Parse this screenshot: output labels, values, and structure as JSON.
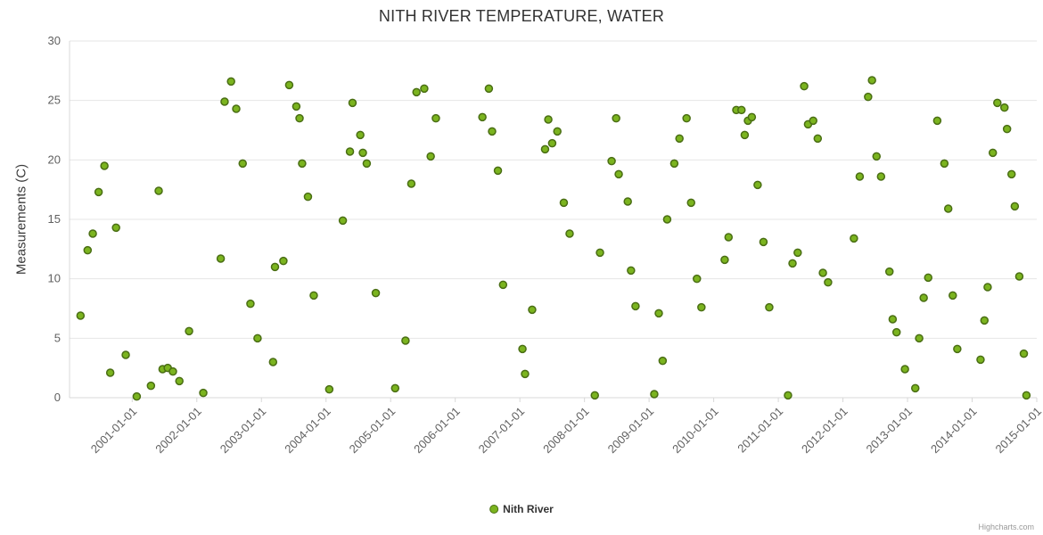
{
  "title": "NITH RIVER TEMPERATURE, WATER",
  "y_axis_title": "Measurements (C)",
  "legend": {
    "label": "Nith River"
  },
  "credits": "Highcharts.com",
  "colors": {
    "marker_fill": "#7bb41f",
    "marker_stroke": "#4a6e14",
    "grid": "#e6e6e6",
    "axis_line": "#d8d8d8",
    "axis_label": "#606060",
    "title_text": "#333333"
  },
  "chart_data": {
    "type": "scatter",
    "title": "NITH RIVER TEMPERATURE, WATER",
    "xlabel": "",
    "ylabel": "Measurements (C)",
    "ylim": [
      0,
      30
    ],
    "xlim": [
      2000.03,
      2015.0
    ],
    "y_ticks": [
      0,
      5,
      10,
      15,
      20,
      25,
      30
    ],
    "x_ticks": [
      {
        "v": 2001,
        "label": "2001-01-01"
      },
      {
        "v": 2002,
        "label": "2002-01-01"
      },
      {
        "v": 2003,
        "label": "2003-01-01"
      },
      {
        "v": 2004,
        "label": "2004-01-01"
      },
      {
        "v": 2005,
        "label": "2005-01-01"
      },
      {
        "v": 2006,
        "label": "2006-01-01"
      },
      {
        "v": 2007,
        "label": "2007-01-01"
      },
      {
        "v": 2008,
        "label": "2008-01-01"
      },
      {
        "v": 2009,
        "label": "2009-01-01"
      },
      {
        "v": 2010,
        "label": "2010-01-01"
      },
      {
        "v": 2011,
        "label": "2011-01-01"
      },
      {
        "v": 2012,
        "label": "2012-01-01"
      },
      {
        "v": 2013,
        "label": "2013-01-01"
      },
      {
        "v": 2014,
        "label": "2014-01-01"
      },
      {
        "v": 2015,
        "label": "2015-01-01"
      }
    ],
    "grid": "horizontal",
    "legend_position": "bottom",
    "series": [
      {
        "name": "Nith River",
        "points": [
          [
            2000.2,
            6.9
          ],
          [
            2000.31,
            12.4
          ],
          [
            2000.39,
            13.8
          ],
          [
            2000.48,
            17.3
          ],
          [
            2000.57,
            19.5
          ],
          [
            2000.66,
            2.1
          ],
          [
            2000.75,
            14.3
          ],
          [
            2000.9,
            3.6
          ],
          [
            2001.07,
            0.1
          ],
          [
            2001.29,
            1.0
          ],
          [
            2001.41,
            17.4
          ],
          [
            2001.47,
            2.4
          ],
          [
            2001.55,
            2.5
          ],
          [
            2001.63,
            2.2
          ],
          [
            2001.73,
            1.4
          ],
          [
            2001.88,
            5.6
          ],
          [
            2002.1,
            0.4
          ],
          [
            2002.37,
            11.7
          ],
          [
            2002.43,
            24.9
          ],
          [
            2002.53,
            26.6
          ],
          [
            2002.61,
            24.3
          ],
          [
            2002.71,
            19.7
          ],
          [
            2002.83,
            7.9
          ],
          [
            2002.94,
            5.0
          ],
          [
            2003.18,
            3.0
          ],
          [
            2003.21,
            11.0
          ],
          [
            2003.34,
            11.5
          ],
          [
            2003.43,
            26.3
          ],
          [
            2003.54,
            24.5
          ],
          [
            2003.59,
            23.5
          ],
          [
            2003.63,
            19.7
          ],
          [
            2003.72,
            16.9
          ],
          [
            2003.81,
            8.6
          ],
          [
            2004.05,
            0.7
          ],
          [
            2004.26,
            14.9
          ],
          [
            2004.37,
            20.7
          ],
          [
            2004.41,
            24.8
          ],
          [
            2004.53,
            22.1
          ],
          [
            2004.57,
            20.6
          ],
          [
            2004.63,
            19.7
          ],
          [
            2004.77,
            8.8
          ],
          [
            2005.07,
            0.8
          ],
          [
            2005.23,
            4.8
          ],
          [
            2005.32,
            18.0
          ],
          [
            2005.4,
            25.7
          ],
          [
            2005.52,
            26.0
          ],
          [
            2005.62,
            20.3
          ],
          [
            2005.7,
            23.5
          ],
          [
            2006.42,
            23.6
          ],
          [
            2006.52,
            26.0
          ],
          [
            2006.57,
            22.4
          ],
          [
            2006.66,
            19.1
          ],
          [
            2006.74,
            9.5
          ],
          [
            2007.04,
            4.1
          ],
          [
            2007.08,
            2.0
          ],
          [
            2007.19,
            7.4
          ],
          [
            2007.39,
            20.9
          ],
          [
            2007.44,
            23.4
          ],
          [
            2007.5,
            21.4
          ],
          [
            2007.58,
            22.4
          ],
          [
            2007.68,
            16.4
          ],
          [
            2007.77,
            13.8
          ],
          [
            2008.16,
            0.2
          ],
          [
            2008.24,
            12.2
          ],
          [
            2008.42,
            19.9
          ],
          [
            2008.49,
            23.5
          ],
          [
            2008.53,
            18.8
          ],
          [
            2008.67,
            16.5
          ],
          [
            2008.72,
            10.7
          ],
          [
            2008.79,
            7.7
          ],
          [
            2009.08,
            0.3
          ],
          [
            2009.15,
            7.1
          ],
          [
            2009.21,
            3.1
          ],
          [
            2009.28,
            15.0
          ],
          [
            2009.39,
            19.7
          ],
          [
            2009.47,
            21.8
          ],
          [
            2009.58,
            23.5
          ],
          [
            2009.65,
            16.4
          ],
          [
            2009.74,
            10.0
          ],
          [
            2009.81,
            7.6
          ],
          [
            2010.17,
            11.6
          ],
          [
            2010.23,
            13.5
          ],
          [
            2010.35,
            24.2
          ],
          [
            2010.43,
            24.2
          ],
          [
            2010.48,
            22.1
          ],
          [
            2010.53,
            23.3
          ],
          [
            2010.59,
            23.6
          ],
          [
            2010.68,
            17.9
          ],
          [
            2010.77,
            13.1
          ],
          [
            2010.86,
            7.6
          ],
          [
            2011.15,
            0.2
          ],
          [
            2011.22,
            11.3
          ],
          [
            2011.3,
            12.2
          ],
          [
            2011.4,
            26.2
          ],
          [
            2011.46,
            23.0
          ],
          [
            2011.54,
            23.3
          ],
          [
            2011.61,
            21.8
          ],
          [
            2011.69,
            10.5
          ],
          [
            2011.77,
            9.7
          ],
          [
            2012.17,
            13.4
          ],
          [
            2012.26,
            18.6
          ],
          [
            2012.39,
            25.3
          ],
          [
            2012.45,
            26.7
          ],
          [
            2012.52,
            20.3
          ],
          [
            2012.59,
            18.6
          ],
          [
            2012.72,
            10.6
          ],
          [
            2012.77,
            6.6
          ],
          [
            2012.83,
            5.5
          ],
          [
            2012.96,
            2.4
          ],
          [
            2013.12,
            0.8
          ],
          [
            2013.18,
            5.0
          ],
          [
            2013.25,
            8.4
          ],
          [
            2013.32,
            10.1
          ],
          [
            2013.46,
            23.3
          ],
          [
            2013.57,
            19.7
          ],
          [
            2013.63,
            15.9
          ],
          [
            2013.7,
            8.6
          ],
          [
            2013.77,
            4.1
          ],
          [
            2014.13,
            3.2
          ],
          [
            2014.19,
            6.5
          ],
          [
            2014.24,
            9.3
          ],
          [
            2014.32,
            20.6
          ],
          [
            2014.39,
            24.8
          ],
          [
            2014.5,
            24.4
          ],
          [
            2014.54,
            22.6
          ],
          [
            2014.61,
            18.8
          ],
          [
            2014.66,
            16.1
          ],
          [
            2014.73,
            10.2
          ],
          [
            2014.8,
            3.7
          ],
          [
            2014.84,
            0.2
          ]
        ]
      }
    ]
  }
}
